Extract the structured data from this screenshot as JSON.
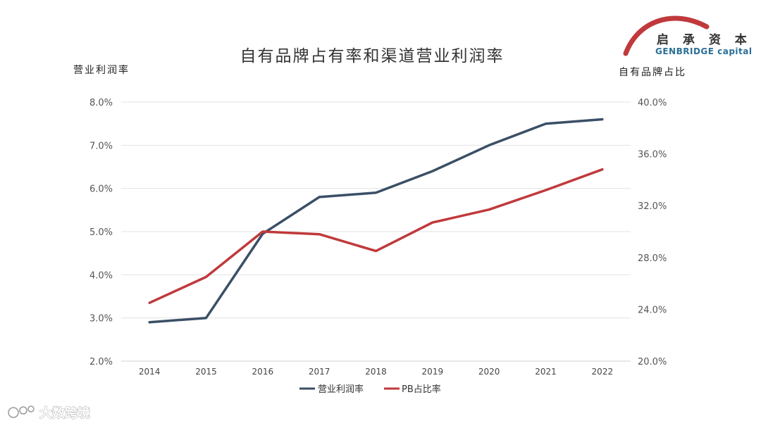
{
  "chart_data": {
    "type": "line",
    "title": "自有品牌占有率和渠道营业利润率",
    "ylabel_left": "营业利润率",
    "ylabel_right": "自有品牌占比",
    "categories": [
      "2014",
      "2015",
      "2016",
      "2017",
      "2018",
      "2019",
      "2020",
      "2021",
      "2022"
    ],
    "y_left": {
      "min": 2.0,
      "max": 8.0,
      "step": 1.0,
      "ticks": [
        "2.0%",
        "3.0%",
        "4.0%",
        "5.0%",
        "6.0%",
        "7.0%",
        "8.0%"
      ]
    },
    "y_right": {
      "min": 20.0,
      "max": 40.0,
      "step": 4.0,
      "ticks": [
        "20.0%",
        "24.0%",
        "28.0%",
        "32.0%",
        "36.0%",
        "40.0%"
      ]
    },
    "series": [
      {
        "name": "营业利润率",
        "axis": "left",
        "color": "#3b4f66",
        "values": [
          2.9,
          3.0,
          4.95,
          5.8,
          5.9,
          6.4,
          7.0,
          7.5,
          7.6
        ]
      },
      {
        "name": "PB占比率",
        "axis": "right",
        "color": "#c0393b",
        "values": [
          24.5,
          26.5,
          30.0,
          29.8,
          28.5,
          30.7,
          31.7,
          33.2,
          34.8
        ]
      }
    ],
    "grid": true,
    "legend": "bottom"
  },
  "logo": {
    "cn": "启 承 资 本",
    "en": "GENBRIDGE capital",
    "accent_color": "#c0393b"
  },
  "watermark": {
    "text": "大数跨境"
  }
}
